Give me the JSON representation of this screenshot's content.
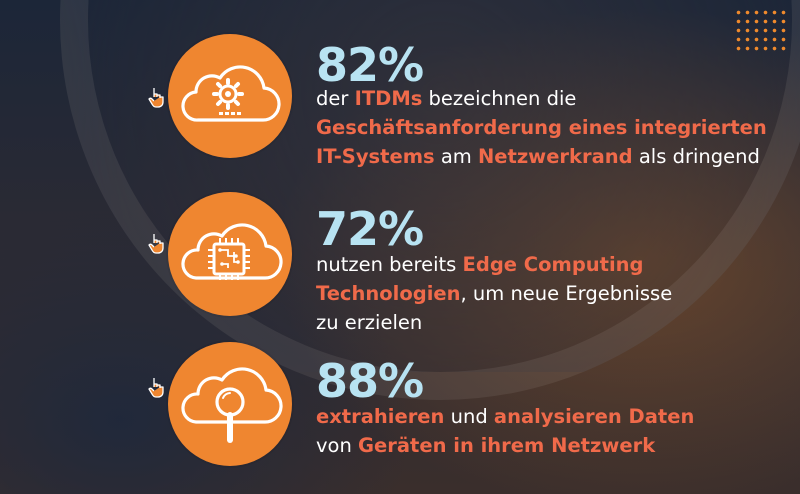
{
  "stats": [
    {
      "value": "82%",
      "icon": "gear-cloud-icon",
      "lines": [
        [
          {
            "t": "der ",
            "h": false
          },
          {
            "t": "ITDMs",
            "h": true
          },
          {
            "t": " bezeichnen die",
            "h": false
          }
        ],
        [
          {
            "t": "Geschäftsanforderung eines integrierten",
            "h": true
          }
        ],
        [
          {
            "t": "IT-Systems",
            "h": true
          },
          {
            "t": " am ",
            "h": false
          },
          {
            "t": "Netzwerkrand",
            "h": true
          },
          {
            "t": " als dringend",
            "h": false
          }
        ]
      ]
    },
    {
      "value": "72%",
      "icon": "chip-cloud-icon",
      "lines": [
        [
          {
            "t": "nutzen bereits ",
            "h": false
          },
          {
            "t": "Edge Computing",
            "h": true
          }
        ],
        [
          {
            "t": "Technologien",
            "h": true
          },
          {
            "t": ", um neue Ergebnisse",
            "h": false
          }
        ],
        [
          {
            "t": "zu erzielen",
            "h": false
          }
        ]
      ]
    },
    {
      "value": "88%",
      "icon": "magnifier-cloud-icon",
      "lines": [
        [
          {
            "t": "extrahieren",
            "h": true
          },
          {
            "t": " und ",
            "h": false
          },
          {
            "t": "analysieren Daten",
            "h": true
          }
        ],
        [
          {
            "t": "von ",
            "h": false
          },
          {
            "t": "Geräten in ihrem Netzwerk",
            "h": true
          }
        ]
      ]
    }
  ],
  "colors": {
    "accent_orange": "#ef8630",
    "highlight": "#f06a4a",
    "percent": "#b8e3f2",
    "text": "#ffffff"
  }
}
